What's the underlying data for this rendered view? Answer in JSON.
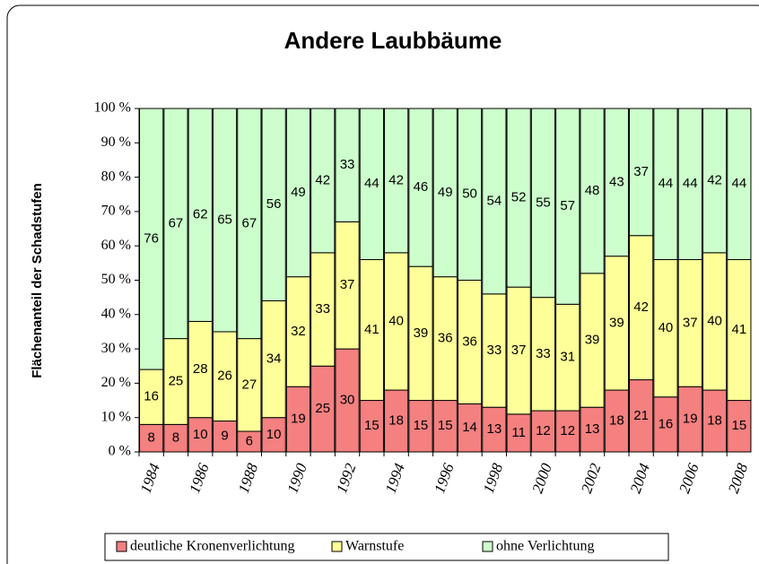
{
  "chart_data": {
    "type": "stacked_bar",
    "title": "Andere Laubbäume",
    "ylabel": "Flächenanteil der Schadstufen",
    "categories": [
      "1984",
      null,
      "1986",
      null,
      "1988",
      null,
      "1990",
      null,
      "1992",
      null,
      "1994",
      null,
      "1996",
      null,
      "1998",
      null,
      "2000",
      null,
      "2002",
      null,
      "2004",
      null,
      "2006",
      null,
      "2008"
    ],
    "series": [
      {
        "name": "deutliche Kronenverlichtung",
        "color": "#f48080",
        "values": [
          8,
          8,
          10,
          9,
          6,
          10,
          19,
          25,
          30,
          15,
          18,
          15,
          15,
          14,
          13,
          11,
          12,
          12,
          13,
          18,
          21,
          16,
          19,
          18,
          15
        ]
      },
      {
        "name": "Warnstufe",
        "color": "#ffff99",
        "values": [
          16,
          25,
          28,
          26,
          27,
          34,
          32,
          33,
          37,
          41,
          40,
          39,
          36,
          36,
          33,
          37,
          33,
          31,
          39,
          39,
          42,
          40,
          37,
          40,
          41
        ]
      },
      {
        "name": "ohne Verlichtung",
        "color": "#ccffcc",
        "values": [
          76,
          67,
          62,
          65,
          67,
          56,
          49,
          42,
          33,
          44,
          42,
          46,
          49,
          50,
          54,
          52,
          55,
          57,
          48,
          43,
          37,
          44,
          44,
          42,
          44
        ]
      }
    ],
    "ylim": [
      0,
      100
    ],
    "yticks": [
      {
        "value": 0,
        "label": "0 %"
      },
      {
        "value": 10,
        "label": "10 %"
      },
      {
        "value": 20,
        "label": "20 %"
      },
      {
        "value": 30,
        "label": "30 %"
      },
      {
        "value": 40,
        "label": "40 %"
      },
      {
        "value": 50,
        "label": "50 %"
      },
      {
        "value": 60,
        "label": "60 %"
      },
      {
        "value": 70,
        "label": "70 %"
      },
      {
        "value": 80,
        "label": "80 %"
      },
      {
        "value": 90,
        "label": "90 %"
      },
      {
        "value": 100,
        "label": "100 %"
      }
    ],
    "legend": "bottom"
  }
}
